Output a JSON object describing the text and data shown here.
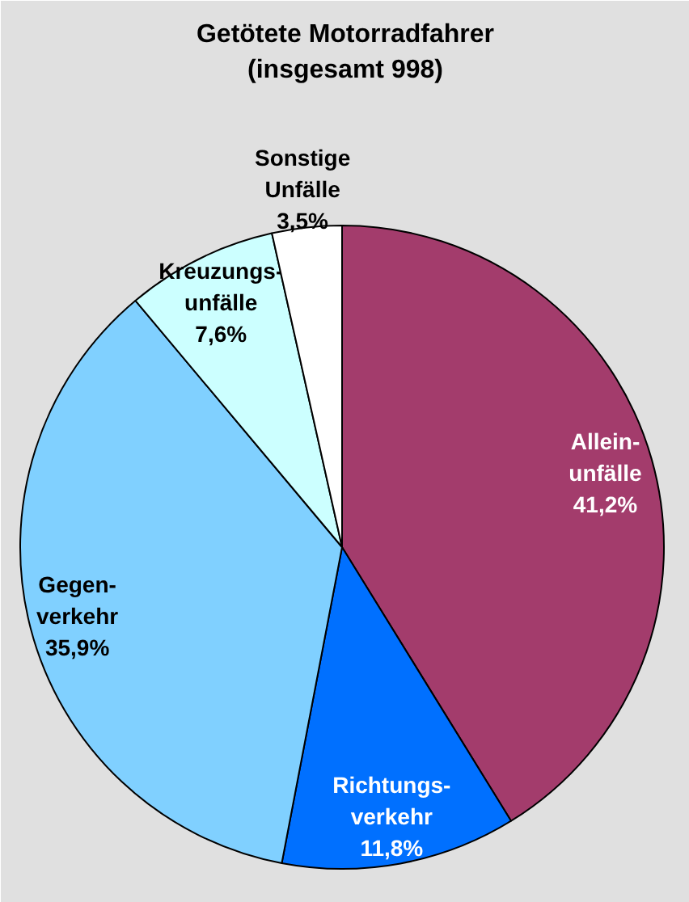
{
  "chart_data": {
    "type": "pie",
    "title": "Getötete Motorradfahrer",
    "subtitle": "(insgesamt 998)",
    "categories": [
      "Allein-\nunfälle",
      "Richtungs-\nverkehr",
      "Gegen-\nverkehr",
      "Kreuzungs-\nunfälle",
      "Sonstige\nUnfälle"
    ],
    "values": [
      41.2,
      11.8,
      35.9,
      7.6,
      3.5
    ],
    "value_labels": [
      "41,2%",
      "11,8%",
      "35,9%",
      "7,6%",
      "3,5%"
    ],
    "colors": [
      "#a33c6c",
      "#0070ff",
      "#80d0ff",
      "#ccffff",
      "#ffffff"
    ]
  }
}
